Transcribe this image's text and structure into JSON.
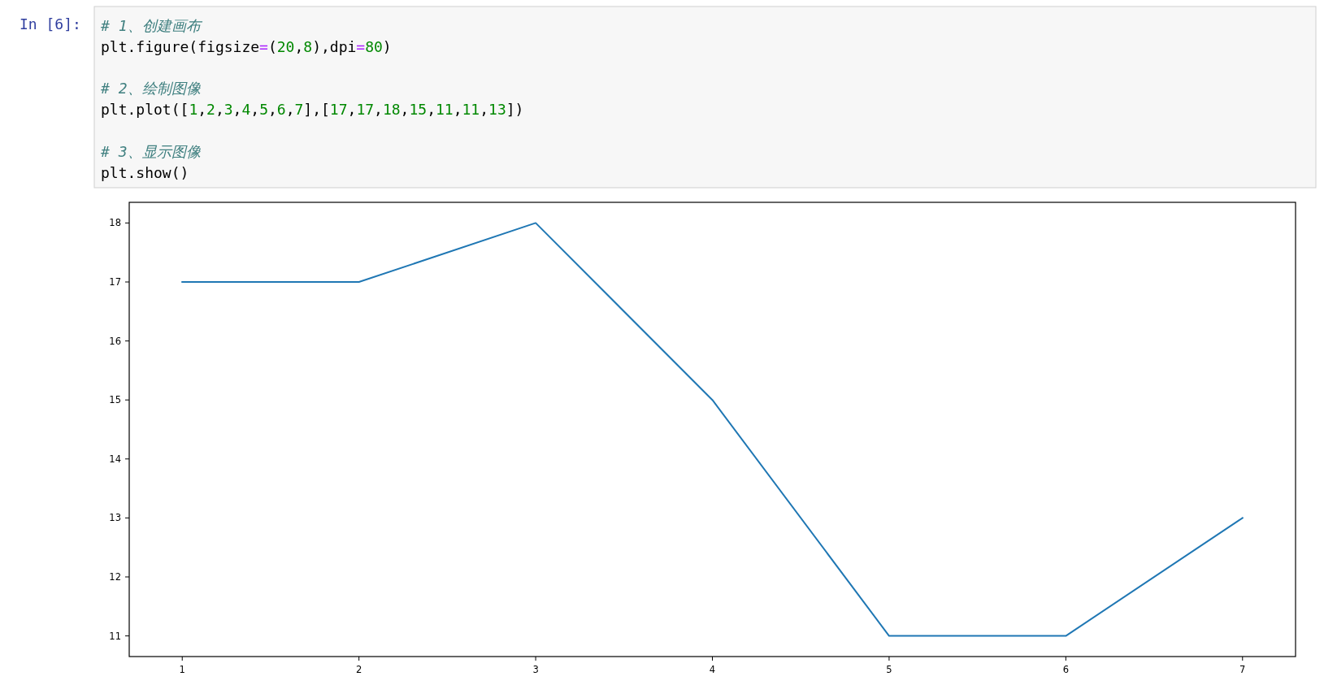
{
  "chart_data": {
    "type": "line",
    "x": [
      1,
      2,
      3,
      4,
      5,
      6,
      7
    ],
    "color": "#1f77b4",
    "values": [
      17,
      17,
      18,
      15,
      11,
      11,
      13
    ],
    "xlim": [
      0.7,
      7.3
    ],
    "ylim": [
      10.65,
      18.35
    ],
    "xticks": [
      1,
      2,
      3,
      4,
      5,
      6,
      7
    ],
    "yticks": [
      11,
      12,
      13,
      14,
      15,
      16,
      17,
      18
    ],
    "annotations": [
      "In [6]:",
      "# 1、创建画布\nplt.figure(figsize=(20,8),dpi=80)\n\n# 2、绘制图像\nplt.plot([1,2,3,4,5,6,7],[17,17,18,15,11,11,13])\n\n# 3、显示图像\nplt.show()"
    ]
  }
}
